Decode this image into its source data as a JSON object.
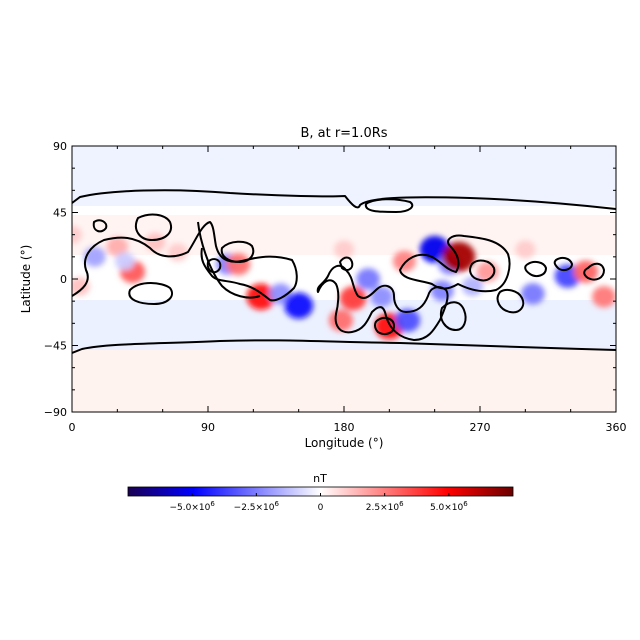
{
  "chart_data": {
    "type": "heatmap",
    "title": "B, at r=1.0Rs",
    "xlabel": "Longitude (°)",
    "ylabel": "Latitude (°)",
    "xlim": [
      0,
      360
    ],
    "ylim": [
      -90,
      90
    ],
    "xticks": [
      0,
      90,
      180,
      270,
      360
    ],
    "xtick_labels": [
      "0",
      "90",
      "180",
      "270",
      "360"
    ],
    "yticks": [
      90,
      45,
      0,
      -45,
      -90
    ],
    "ytick_labels": [
      "90",
      "45",
      "0",
      "−45",
      "−90"
    ],
    "grid": false,
    "colormap": {
      "stops": [
        "#1a0052",
        "#0000ff",
        "#ffffff",
        "#ff0000",
        "#6b0000"
      ],
      "vmin": -7500000,
      "vmax": 7500000
    },
    "polarity_inversion_line_color": "#000000",
    "regions": [
      {
        "lon": 40,
        "lat": 5,
        "value": 3200000
      },
      {
        "lon": 30,
        "lat": 22,
        "value": 1600000
      },
      {
        "lon": 15,
        "lat": 15,
        "value": -1800000
      },
      {
        "lon": 35,
        "lat": 12,
        "value": -1000000
      },
      {
        "lon": 55,
        "lat": 25,
        "value": 1200000
      },
      {
        "lon": 70,
        "lat": 18,
        "value": 1000000
      },
      {
        "lon": 103,
        "lat": 10,
        "value": -2400000
      },
      {
        "lon": 110,
        "lat": 10,
        "value": 2800000
      },
      {
        "lon": 125,
        "lat": -12,
        "value": 4800000
      },
      {
        "lon": 138,
        "lat": -10,
        "value": -2200000
      },
      {
        "lon": 150,
        "lat": -18,
        "value": -4800000
      },
      {
        "lon": 178,
        "lat": -28,
        "value": 2800000
      },
      {
        "lon": 186,
        "lat": -13,
        "value": 3800000
      },
      {
        "lon": 196,
        "lat": 0,
        "value": -2600000
      },
      {
        "lon": 205,
        "lat": -12,
        "value": -2200000
      },
      {
        "lon": 210,
        "lat": -32,
        "value": 4800000
      },
      {
        "lon": 222,
        "lat": -28,
        "value": -3400000
      },
      {
        "lon": 220,
        "lat": 12,
        "value": 2400000
      },
      {
        "lon": 240,
        "lat": 20,
        "value": -5200000
      },
      {
        "lon": 250,
        "lat": 10,
        "value": -2400000
      },
      {
        "lon": 256,
        "lat": 15,
        "value": 6500000
      },
      {
        "lon": 275,
        "lat": 5,
        "value": 2000000
      },
      {
        "lon": 245,
        "lat": -8,
        "value": -2400000
      },
      {
        "lon": 265,
        "lat": -5,
        "value": -1500000
      },
      {
        "lon": 305,
        "lat": -10,
        "value": -2600000
      },
      {
        "lon": 328,
        "lat": 2,
        "value": -3600000
      },
      {
        "lon": 340,
        "lat": 5,
        "value": 3000000
      },
      {
        "lon": 352,
        "lat": -12,
        "value": 2600000
      },
      {
        "lon": 5,
        "lat": -5,
        "value": 1200000
      },
      {
        "lon": 300,
        "lat": 20,
        "value": 1000000
      },
      {
        "lon": 180,
        "lat": 20,
        "value": 1000000
      },
      {
        "lon": 0,
        "lat": 30,
        "value": 1000000
      }
    ],
    "colorbar": {
      "label": "nT",
      "ticks": [
        -5000000,
        -2500000,
        0,
        2500000,
        5000000
      ],
      "tick_labels": [
        {
          "mantissa": "−5.0×10",
          "exponent": "6"
        },
        {
          "mantissa": "−2.5×10",
          "exponent": "6"
        },
        {
          "mantissa": "0",
          "exponent": ""
        },
        {
          "mantissa": "2.5×10",
          "exponent": "6"
        },
        {
          "mantissa": "5.0×10",
          "exponent": "6"
        }
      ]
    }
  }
}
